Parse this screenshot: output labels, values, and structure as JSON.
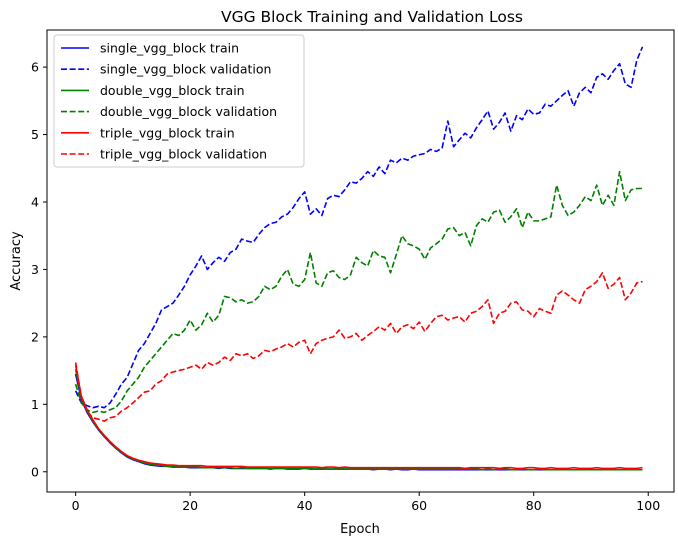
{
  "chart_data": {
    "type": "line",
    "title": "VGG Block Training and Validation Loss",
    "xlabel": "Epoch",
    "ylabel": "Accuracy",
    "xlim": [
      -5,
      104.5
    ],
    "ylim": [
      -0.3,
      6.55
    ],
    "xticks": [
      0,
      20,
      40,
      60,
      80,
      100
    ],
    "yticks": [
      0,
      1,
      2,
      3,
      4,
      5,
      6
    ],
    "grid": false,
    "legend_placement": "top-left",
    "x": [
      0,
      1,
      2,
      3,
      4,
      5,
      6,
      7,
      8,
      9,
      10,
      11,
      12,
      13,
      14,
      15,
      16,
      17,
      18,
      19,
      20,
      21,
      22,
      23,
      24,
      25,
      26,
      27,
      28,
      29,
      30,
      31,
      32,
      33,
      34,
      35,
      36,
      37,
      38,
      39,
      40,
      41,
      42,
      43,
      44,
      45,
      46,
      47,
      48,
      49,
      50,
      51,
      52,
      53,
      54,
      55,
      56,
      57,
      58,
      59,
      60,
      61,
      62,
      63,
      64,
      65,
      66,
      67,
      68,
      69,
      70,
      71,
      72,
      73,
      74,
      75,
      76,
      77,
      78,
      79,
      80,
      81,
      82,
      83,
      84,
      85,
      86,
      87,
      88,
      89,
      90,
      91,
      92,
      93,
      94,
      95,
      96,
      97,
      98,
      99
    ],
    "series": [
      {
        "name": "single_vgg_block train",
        "color": "#0000ff",
        "dash": "solid",
        "values": [
          1.45,
          1.07,
          0.88,
          0.74,
          0.62,
          0.52,
          0.43,
          0.35,
          0.28,
          0.22,
          0.18,
          0.15,
          0.12,
          0.1,
          0.09,
          0.08,
          0.08,
          0.07,
          0.07,
          0.07,
          0.06,
          0.06,
          0.06,
          0.06,
          0.06,
          0.05,
          0.06,
          0.05,
          0.05,
          0.05,
          0.05,
          0.05,
          0.05,
          0.05,
          0.04,
          0.05,
          0.05,
          0.04,
          0.04,
          0.04,
          0.05,
          0.04,
          0.04,
          0.04,
          0.04,
          0.04,
          0.04,
          0.04,
          0.04,
          0.04,
          0.04,
          0.04,
          0.03,
          0.04,
          0.04,
          0.03,
          0.04,
          0.03,
          0.03,
          0.04,
          0.03,
          0.03,
          0.03,
          0.03,
          0.03,
          0.03,
          0.03,
          0.03,
          0.03,
          0.03,
          0.03,
          0.03,
          0.03,
          0.03,
          0.03,
          0.03,
          0.03,
          0.03,
          0.03,
          0.03,
          0.03,
          0.03,
          0.03,
          0.03,
          0.03,
          0.03,
          0.03,
          0.03,
          0.03,
          0.03,
          0.03,
          0.03,
          0.03,
          0.03,
          0.03,
          0.03,
          0.03,
          0.03,
          0.03,
          0.03
        ]
      },
      {
        "name": "single_vgg_block validation",
        "color": "#0000ff",
        "dash": "dashed",
        "values": [
          1.2,
          1.02,
          0.98,
          0.95,
          0.97,
          0.95,
          1.02,
          1.15,
          1.3,
          1.4,
          1.6,
          1.8,
          1.9,
          2.05,
          2.2,
          2.4,
          2.45,
          2.5,
          2.62,
          2.75,
          2.92,
          3.05,
          3.2,
          3.0,
          3.1,
          3.18,
          3.12,
          3.25,
          3.3,
          3.45,
          3.42,
          3.4,
          3.52,
          3.62,
          3.68,
          3.7,
          3.78,
          3.82,
          3.92,
          4.05,
          4.15,
          3.82,
          3.9,
          3.8,
          4.05,
          4.1,
          4.08,
          4.18,
          4.3,
          4.28,
          4.35,
          4.45,
          4.38,
          4.52,
          4.42,
          4.62,
          4.58,
          4.65,
          4.62,
          4.68,
          4.7,
          4.72,
          4.78,
          4.75,
          4.8,
          5.2,
          4.82,
          4.92,
          5.02,
          4.95,
          5.1,
          5.22,
          5.35,
          5.08,
          5.18,
          5.32,
          5.05,
          5.28,
          5.22,
          5.38,
          5.3,
          5.32,
          5.45,
          5.42,
          5.5,
          5.58,
          5.65,
          5.42,
          5.62,
          5.7,
          5.62,
          5.85,
          5.9,
          5.82,
          5.95,
          6.05,
          5.75,
          5.7,
          6.1,
          6.3
        ]
      },
      {
        "name": "double_vgg_block train",
        "color": "#008000",
        "dash": "solid",
        "values": [
          1.52,
          1.09,
          0.9,
          0.75,
          0.63,
          0.53,
          0.44,
          0.36,
          0.29,
          0.23,
          0.19,
          0.16,
          0.13,
          0.11,
          0.1,
          0.09,
          0.08,
          0.08,
          0.07,
          0.07,
          0.07,
          0.07,
          0.06,
          0.06,
          0.06,
          0.06,
          0.06,
          0.06,
          0.05,
          0.06,
          0.05,
          0.05,
          0.05,
          0.05,
          0.05,
          0.05,
          0.05,
          0.05,
          0.05,
          0.05,
          0.05,
          0.05,
          0.04,
          0.05,
          0.04,
          0.04,
          0.05,
          0.04,
          0.04,
          0.04,
          0.04,
          0.04,
          0.04,
          0.04,
          0.04,
          0.04,
          0.04,
          0.04,
          0.04,
          0.04,
          0.04,
          0.04,
          0.04,
          0.04,
          0.04,
          0.04,
          0.04,
          0.04,
          0.04,
          0.04,
          0.04,
          0.03,
          0.04,
          0.03,
          0.04,
          0.04,
          0.03,
          0.03,
          0.04,
          0.03,
          0.03,
          0.04,
          0.03,
          0.03,
          0.03,
          0.03,
          0.03,
          0.03,
          0.03,
          0.03,
          0.03,
          0.03,
          0.03,
          0.03,
          0.03,
          0.03,
          0.03,
          0.03,
          0.03,
          0.03
        ]
      },
      {
        "name": "double_vgg_block validation",
        "color": "#008000",
        "dash": "dashed",
        "values": [
          1.3,
          1.02,
          0.92,
          0.88,
          0.9,
          0.88,
          0.92,
          0.95,
          1.05,
          1.2,
          1.3,
          1.4,
          1.55,
          1.65,
          1.75,
          1.85,
          1.95,
          2.05,
          2.02,
          2.1,
          2.25,
          2.1,
          2.18,
          2.35,
          2.22,
          2.32,
          2.6,
          2.58,
          2.52,
          2.55,
          2.5,
          2.52,
          2.6,
          2.75,
          2.7,
          2.75,
          2.9,
          3.0,
          2.78,
          2.75,
          2.85,
          3.25,
          2.8,
          2.75,
          2.95,
          2.98,
          2.88,
          2.85,
          2.92,
          3.18,
          3.1,
          3.05,
          3.28,
          3.2,
          3.18,
          2.95,
          3.22,
          3.5,
          3.38,
          3.35,
          3.3,
          3.15,
          3.32,
          3.38,
          3.45,
          3.6,
          3.62,
          3.5,
          3.55,
          3.35,
          3.65,
          3.75,
          3.7,
          3.85,
          3.88,
          3.7,
          3.78,
          3.9,
          3.62,
          3.85,
          3.72,
          3.72,
          3.75,
          3.78,
          4.25,
          3.95,
          3.8,
          3.85,
          3.95,
          4.08,
          4.02,
          4.25,
          3.95,
          4.1,
          3.95,
          4.45,
          4.02,
          4.18,
          4.2,
          4.2
        ]
      },
      {
        "name": "triple_vgg_block train",
        "color": "#ff0000",
        "dash": "solid",
        "values": [
          1.58,
          1.12,
          0.92,
          0.77,
          0.64,
          0.54,
          0.45,
          0.37,
          0.3,
          0.24,
          0.2,
          0.17,
          0.15,
          0.13,
          0.12,
          0.11,
          0.1,
          0.1,
          0.09,
          0.09,
          0.09,
          0.09,
          0.09,
          0.08,
          0.08,
          0.08,
          0.08,
          0.08,
          0.08,
          0.08,
          0.07,
          0.07,
          0.07,
          0.07,
          0.07,
          0.07,
          0.07,
          0.07,
          0.07,
          0.07,
          0.07,
          0.07,
          0.07,
          0.06,
          0.07,
          0.07,
          0.06,
          0.07,
          0.06,
          0.06,
          0.06,
          0.06,
          0.06,
          0.06,
          0.06,
          0.06,
          0.06,
          0.06,
          0.06,
          0.06,
          0.06,
          0.06,
          0.06,
          0.06,
          0.06,
          0.06,
          0.06,
          0.06,
          0.05,
          0.06,
          0.06,
          0.06,
          0.06,
          0.06,
          0.05,
          0.06,
          0.06,
          0.05,
          0.05,
          0.06,
          0.06,
          0.05,
          0.05,
          0.06,
          0.05,
          0.05,
          0.05,
          0.06,
          0.05,
          0.05,
          0.05,
          0.06,
          0.05,
          0.05,
          0.05,
          0.06,
          0.05,
          0.05,
          0.05,
          0.06
        ]
      },
      {
        "name": "triple_vgg_block validation",
        "color": "#ff0000",
        "dash": "dashed",
        "values": [
          1.62,
          1.1,
          0.9,
          0.8,
          0.78,
          0.75,
          0.8,
          0.82,
          0.9,
          0.95,
          1.02,
          1.1,
          1.18,
          1.2,
          1.3,
          1.35,
          1.45,
          1.48,
          1.5,
          1.52,
          1.55,
          1.58,
          1.52,
          1.62,
          1.58,
          1.62,
          1.7,
          1.65,
          1.75,
          1.72,
          1.75,
          1.68,
          1.72,
          1.8,
          1.78,
          1.82,
          1.85,
          1.9,
          1.85,
          1.92,
          1.95,
          1.75,
          1.9,
          1.95,
          1.98,
          2.0,
          2.1,
          1.98,
          2.0,
          2.05,
          1.95,
          2.02,
          2.08,
          2.15,
          2.1,
          2.2,
          2.05,
          2.15,
          2.18,
          2.12,
          2.22,
          2.08,
          2.2,
          2.3,
          2.32,
          2.25,
          2.28,
          2.3,
          2.22,
          2.35,
          2.38,
          2.45,
          2.55,
          2.2,
          2.35,
          2.38,
          2.5,
          2.52,
          2.4,
          2.38,
          2.3,
          2.42,
          2.38,
          2.35,
          2.62,
          2.68,
          2.62,
          2.55,
          2.5,
          2.7,
          2.75,
          2.82,
          2.95,
          2.72,
          2.78,
          2.88,
          2.55,
          2.65,
          2.8,
          2.82
        ]
      }
    ]
  }
}
